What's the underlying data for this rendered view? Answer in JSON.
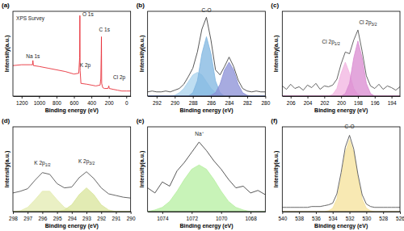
{
  "chart_data": [
    {
      "type": "line",
      "title": "(a)",
      "x_label": "Binding energy (eV)",
      "y_label": "Intensity(a.u.)",
      "tick_labels": "x",
      "xlim": [
        1300,
        -50
      ],
      "ylim": [
        0,
        100
      ],
      "xticks": [
        1200,
        1000,
        800,
        600,
        400,
        200,
        0
      ],
      "x": [
        1300,
        1200,
        1100,
        1075,
        1071,
        1065,
        1000,
        900,
        800,
        700,
        600,
        545,
        535,
        532,
        529,
        520,
        450,
        400,
        350,
        300,
        295,
        292,
        287,
        285,
        282,
        270,
        250,
        210,
        200,
        195,
        150,
        100,
        50,
        0,
        -50
      ],
      "series": [
        {
          "type": "line",
          "color": "#e8303a",
          "values": [
            36,
            37,
            37,
            37,
            42,
            36,
            35,
            33,
            31,
            29,
            26,
            27,
            45,
            95,
            30,
            15,
            14,
            13,
            12,
            13,
            18,
            20,
            50,
            70,
            15,
            10,
            9,
            9,
            12,
            9,
            8,
            7,
            6,
            6,
            6
          ]
        }
      ],
      "annotations": [
        {
          "text": "XPS Survey",
          "x": 1100,
          "y": 90
        },
        {
          "text": "Na 1s",
          "x": 1070,
          "y": 45
        },
        {
          "text": "O 1s",
          "x": 440,
          "y": 94
        },
        {
          "text": "C 1s",
          "x": 250,
          "y": 76
        },
        {
          "text": "K 2p",
          "x": 470,
          "y": 34
        },
        {
          "text": "Cl 2p",
          "x": 80,
          "y": 20
        }
      ]
    },
    {
      "type": "line",
      "title": "(b)",
      "x_label": "Binding energy (eV)",
      "y_label": "Intensity(a.u.)",
      "tick_labels": "x",
      "xlim": [
        293,
        280
      ],
      "ylim": [
        0,
        100
      ],
      "xticks": [
        292,
        290,
        288,
        286,
        284,
        282,
        280
      ],
      "x": [
        293,
        292.5,
        292,
        291.5,
        291,
        290.5,
        290,
        289.5,
        289,
        288.5,
        288,
        287.5,
        287,
        286.5,
        286,
        285.5,
        285,
        284.5,
        284,
        283.5,
        283,
        282.5,
        282,
        281.5,
        281,
        280.5,
        280
      ],
      "series": [
        {
          "type": "area",
          "color": "#a9d3ee",
          "values": [
            0,
            0,
            0,
            0,
            0,
            0,
            1,
            4,
            9,
            17,
            25,
            28,
            25,
            17,
            9,
            4,
            1,
            0,
            0,
            0,
            0,
            0,
            0,
            0,
            0,
            0,
            0
          ]
        },
        {
          "type": "area",
          "color": "#7fb5e0",
          "values": [
            0,
            0,
            0,
            0,
            0,
            0,
            0,
            0,
            0,
            0,
            4,
            18,
            50,
            70,
            50,
            18,
            4,
            0,
            0,
            0,
            0,
            0,
            0,
            0,
            0,
            0,
            0
          ]
        },
        {
          "type": "area",
          "color": "#8a8fd6",
          "values": [
            0,
            0,
            0,
            0,
            0,
            0,
            0,
            0,
            0,
            0,
            0,
            0,
            0,
            0,
            1,
            4,
            14,
            31,
            40,
            31,
            14,
            4,
            1,
            0,
            0,
            0,
            0
          ]
        },
        {
          "type": "line",
          "color": "#444444",
          "values": [
            5,
            6,
            5,
            5,
            6,
            5,
            7,
            9,
            14,
            23,
            33,
            52,
            79,
            93,
            66,
            31,
            25,
            35,
            46,
            35,
            19,
            9,
            6,
            5,
            6,
            5,
            5
          ]
        }
      ],
      "annotations": [
        {
          "text": "C-O",
          "x": 286.5,
          "y": 99
        }
      ]
    },
    {
      "type": "line",
      "title": "(c)",
      "x_label": "Binding energy (eV)",
      "y_label": "Intensity(a.u.)",
      "tick_labels": "x",
      "xlim": [
        207,
        193
      ],
      "ylim": [
        0,
        100
      ],
      "xticks": [
        206,
        204,
        202,
        200,
        198,
        196,
        194
      ],
      "x": [
        207,
        206.5,
        206,
        205.5,
        205,
        204.5,
        204,
        203.5,
        203,
        202.5,
        202,
        201.5,
        201,
        200.5,
        200,
        199.5,
        199,
        198.5,
        198,
        197.5,
        197,
        196.5,
        196,
        195.5,
        195,
        194.5,
        194,
        193.5,
        193
      ],
      "series": [
        {
          "type": "area",
          "color": "#f2b3e0",
          "values": [
            0,
            0,
            0,
            0,
            0,
            0,
            0,
            0,
            0,
            0,
            0,
            0,
            2,
            9,
            27,
            40,
            27,
            9,
            2,
            0,
            0,
            0,
            0,
            0,
            0,
            0,
            0,
            0,
            0
          ]
        },
        {
          "type": "area",
          "color": "#d98ad0",
          "values": [
            0,
            0,
            0,
            0,
            0,
            0,
            0,
            0,
            0,
            0,
            0,
            0,
            0,
            0,
            0,
            3,
            15,
            45,
            65,
            45,
            15,
            3,
            0,
            0,
            0,
            0,
            0,
            0,
            0
          ]
        },
        {
          "type": "line",
          "color": "#555555",
          "values": [
            12,
            8,
            14,
            9,
            11,
            7,
            13,
            10,
            15,
            8,
            12,
            11,
            13,
            20,
            38,
            52,
            50,
            66,
            78,
            53,
            24,
            12,
            9,
            14,
            8,
            12,
            10,
            7,
            11
          ]
        }
      ],
      "annotations": [
        {
          "text": "Cl 2p1/2",
          "x": 201.2,
          "y": 62
        },
        {
          "text": "Cl 2p3/2",
          "x": 196.8,
          "y": 85
        }
      ]
    },
    {
      "type": "line",
      "title": "(d)",
      "x_label": "Binding energy (eV)",
      "y_label": "Intensity(a.u.)",
      "tick_labels": "x",
      "xlim": [
        298,
        290
      ],
      "ylim": [
        0,
        100
      ],
      "xticks": [
        298,
        297,
        296,
        295,
        294,
        293,
        292,
        291,
        290
      ],
      "x": [
        298,
        297.5,
        297,
        296.5,
        296,
        295.5,
        295,
        294.5,
        294,
        293.5,
        293,
        292.5,
        292,
        291.5,
        291,
        290.5,
        290
      ],
      "series": [
        {
          "type": "area",
          "color": "#e3ebb0",
          "values": [
            0,
            1,
            5,
            14,
            24,
            24,
            14,
            5,
            1,
            0,
            0,
            0,
            0,
            0,
            0,
            0,
            0
          ]
        },
        {
          "type": "area",
          "color": "#d8e49a",
          "values": [
            0,
            0,
            0,
            0,
            0,
            0,
            0,
            2,
            8,
            20,
            28,
            20,
            8,
            2,
            0,
            0,
            0
          ]
        },
        {
          "type": "line",
          "color": "#555555",
          "values": [
            22,
            24,
            27,
            37,
            46,
            44,
            33,
            28,
            29,
            40,
            47,
            39,
            28,
            21,
            19,
            17,
            16
          ]
        }
      ],
      "annotations": [
        {
          "text": "K 2p1/2",
          "x": 296,
          "y": 55
        },
        {
          "text": "K 2p3/2",
          "x": 293,
          "y": 57
        }
      ]
    },
    {
      "type": "line",
      "title": "(e)",
      "x_label": "Binding energy (eV)",
      "y_label": "Intensity(a.u.)",
      "tick_labels": "x",
      "xlim": [
        1075,
        1067
      ],
      "ylim": [
        0,
        100
      ],
      "xticks": [
        1074,
        1072,
        1070,
        1068
      ],
      "x": [
        1075,
        1074.5,
        1074,
        1073.5,
        1073,
        1072.5,
        1072,
        1071.5,
        1071,
        1070.5,
        1070,
        1069.5,
        1069,
        1068.5,
        1068,
        1067.5,
        1067
      ],
      "series": [
        {
          "type": "area",
          "color": "#b6efa0",
          "values": [
            0,
            2,
            5,
            12,
            24,
            38,
            50,
            55,
            50,
            38,
            24,
            12,
            5,
            2,
            0,
            0,
            0
          ]
        },
        {
          "type": "line",
          "color": "#444444",
          "values": [
            28,
            22,
            35,
            30,
            48,
            58,
            70,
            82,
            72,
            60,
            50,
            38,
            28,
            30,
            22,
            25,
            20
          ]
        }
      ],
      "annotations": [
        {
          "text": "Na⁺",
          "x": 1071.5,
          "y": 90
        }
      ]
    },
    {
      "type": "line",
      "title": "(f)",
      "x_label": "Binding energy (eV)",
      "y_label": "Intensity(a.u.)",
      "tick_labels": "x",
      "xlim": [
        540,
        526
      ],
      "ylim": [
        0,
        100
      ],
      "xticks": [
        540,
        538,
        536,
        534,
        532,
        530,
        528,
        526
      ],
      "x": [
        540,
        539.5,
        539,
        538.5,
        538,
        537.5,
        537,
        536.5,
        536,
        535.5,
        535,
        534.5,
        534,
        533.5,
        533,
        532.5,
        532,
        531.5,
        531,
        530.5,
        530,
        529.5,
        529,
        528.5,
        528,
        527.5,
        527,
        526.5,
        526
      ],
      "series": [
        {
          "type": "area",
          "color": "#f5e29a",
          "values": [
            0,
            0,
            0,
            0,
            0,
            0,
            0,
            0,
            0,
            0,
            0,
            1,
            4,
            15,
            40,
            70,
            85,
            70,
            40,
            15,
            4,
            1,
            0,
            0,
            0,
            0,
            0,
            0,
            0
          ]
        },
        {
          "type": "line",
          "color": "#555555",
          "values": [
            5,
            5,
            5,
            5,
            5,
            5,
            5,
            6,
            6,
            6,
            7,
            8,
            10,
            21,
            46,
            76,
            90,
            74,
            44,
            20,
            9,
            6,
            5,
            5,
            5,
            5,
            5,
            5,
            5
          ]
        }
      ],
      "annotations": [
        {
          "text": "C-O",
          "x": 532,
          "y": 98
        }
      ]
    }
  ]
}
